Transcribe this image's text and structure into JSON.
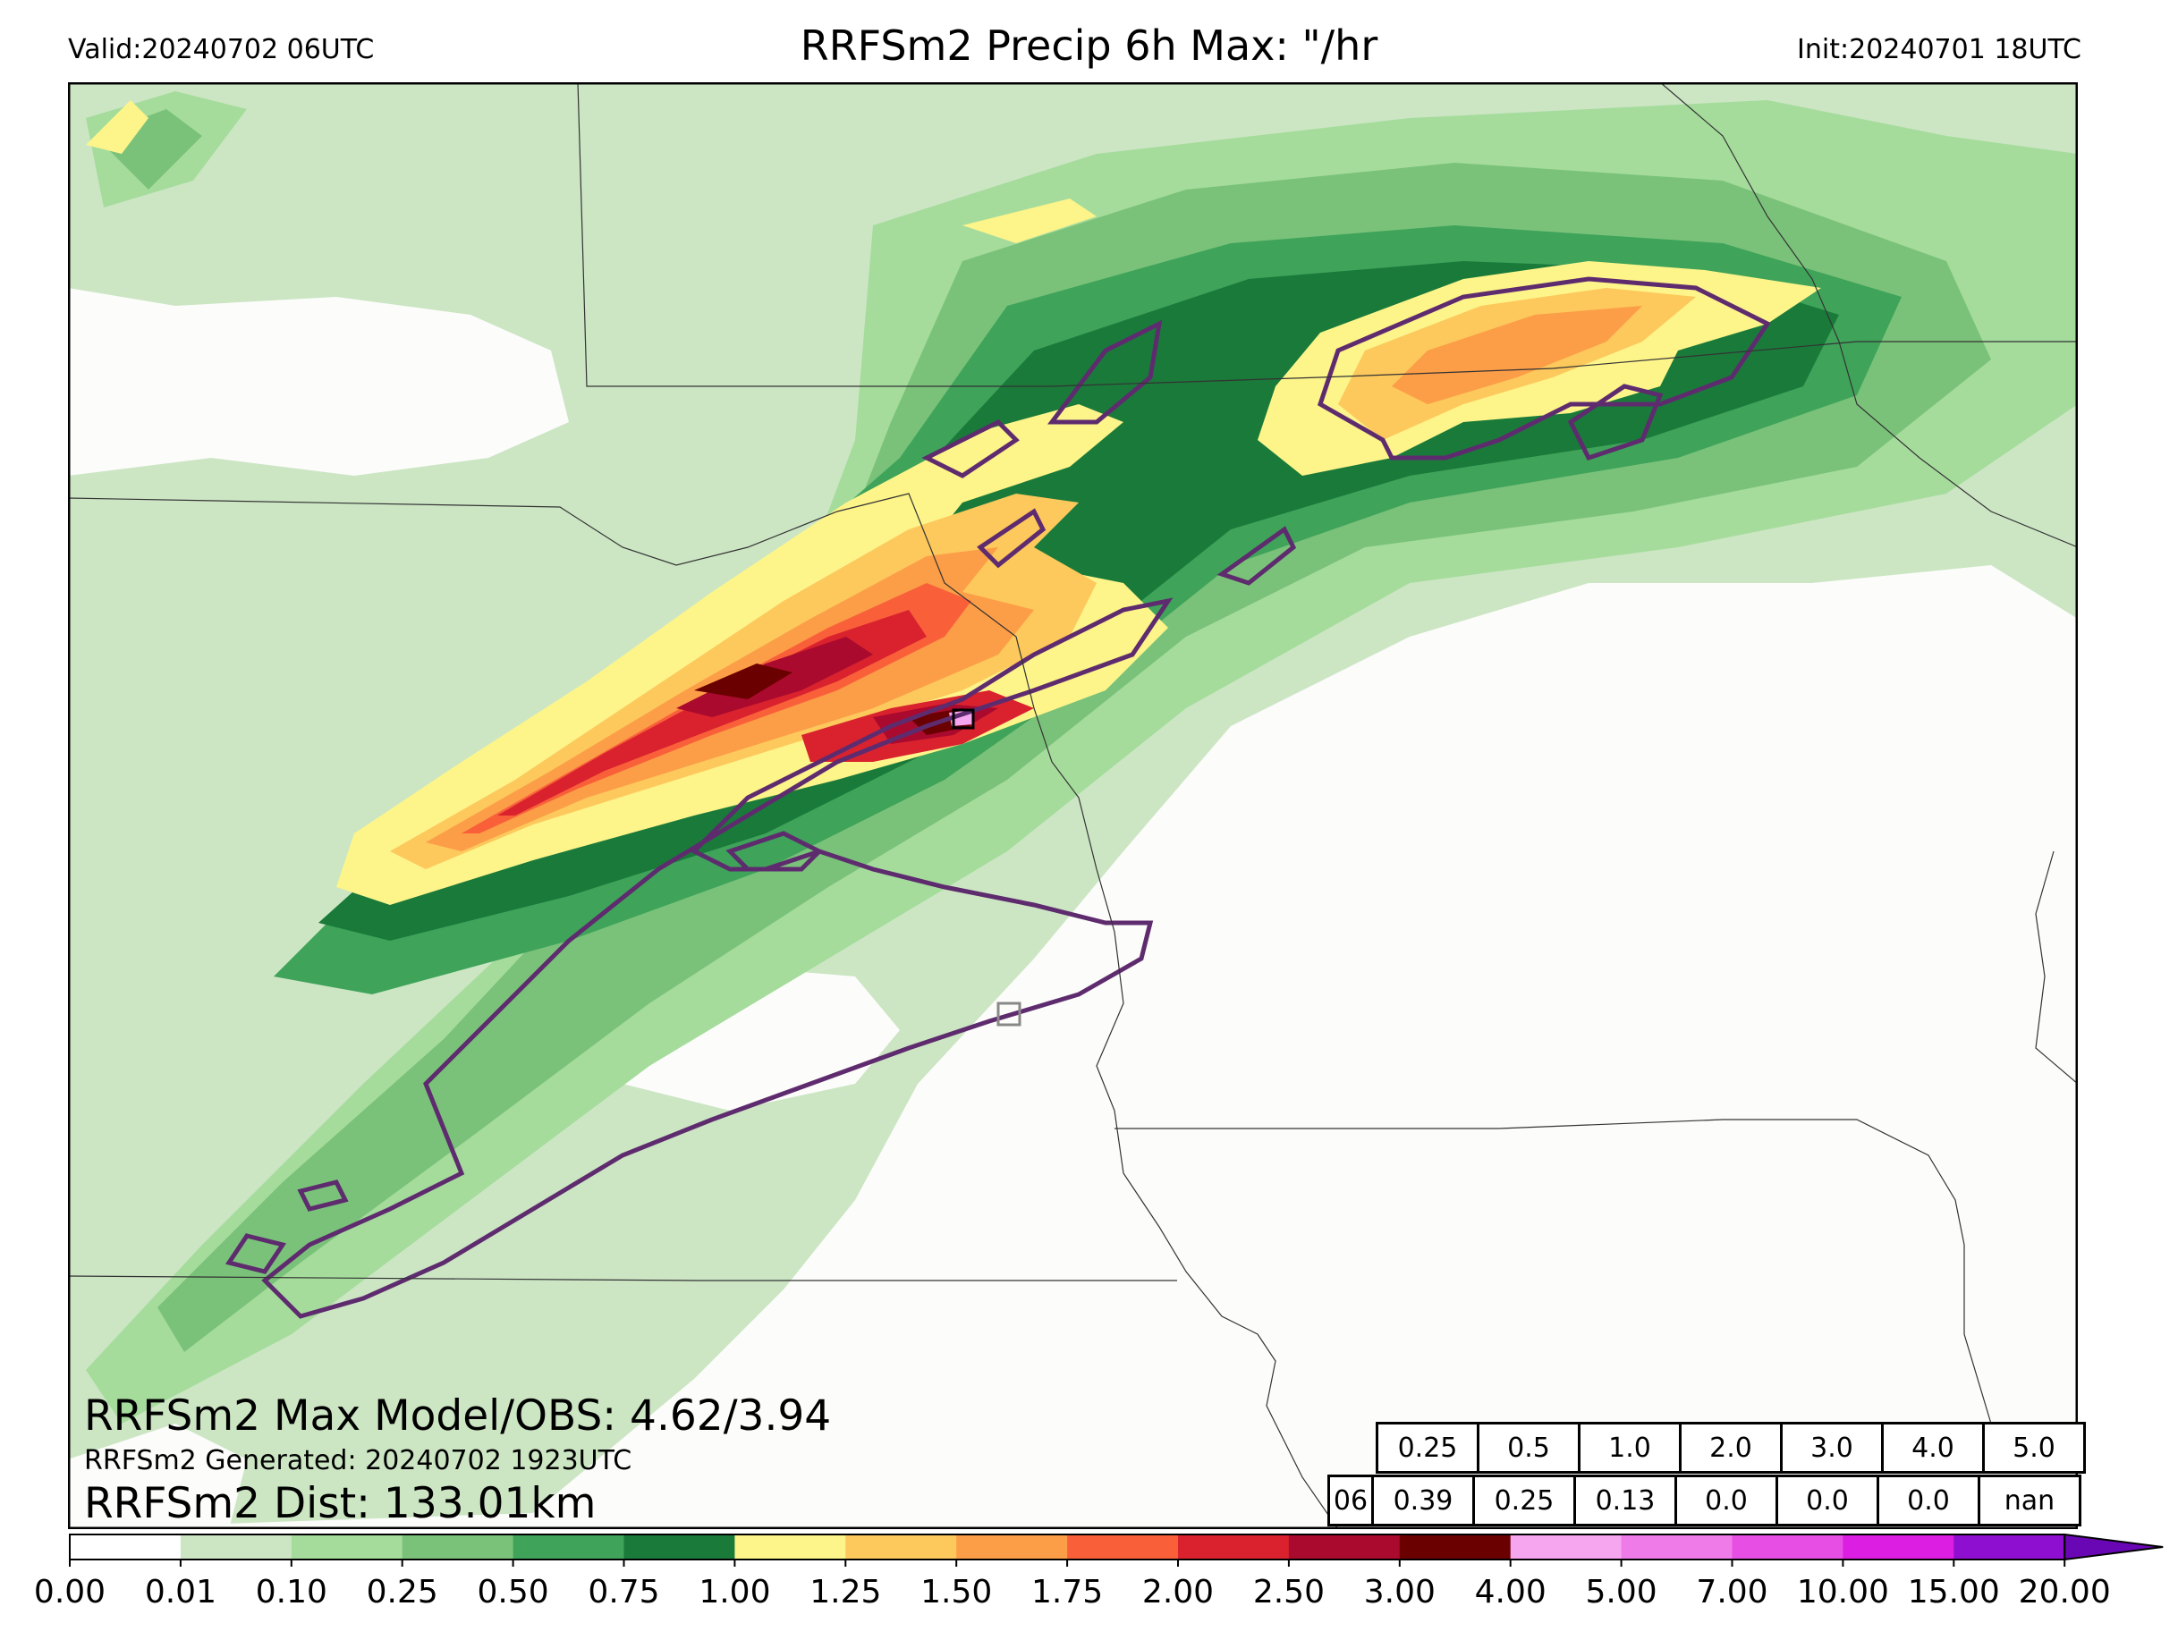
{
  "header": {
    "valid": "Valid:20240702 06UTC",
    "title": "RRFSm2 Precip 6h Max: \"/hr",
    "init": "Init:20240701 18UTC"
  },
  "stats": {
    "max_model_obs": "RRFSm2 Max Model/OBS: 4.62/3.94",
    "generated": "RRFSm2 Generated: 20240702 1923UTC",
    "dist": "RRFSm2 Dist: 133.01km"
  },
  "threshold_table": {
    "row_label": "06",
    "thresholds": [
      "0.25",
      "0.5",
      "1.0",
      "2.0",
      "3.0",
      "4.0",
      "5.0"
    ],
    "values": [
      "0.39",
      "0.25",
      "0.13",
      "0.0",
      "0.0",
      "0.0",
      "nan"
    ]
  },
  "colorbar": {
    "ticks": [
      "0.00",
      "0.01",
      "0.10",
      "0.25",
      "0.50",
      "0.75",
      "1.00",
      "1.25",
      "1.50",
      "1.75",
      "2.00",
      "2.50",
      "3.00",
      "4.00",
      "5.00",
      "7.00",
      "10.00",
      "15.00",
      "20.00"
    ],
    "colors": [
      "#ffffff",
      "#cce6c4",
      "#a5dc9c",
      "#7ac27a",
      "#3fa35a",
      "#1a7a3a",
      "#fdf48a",
      "#fdc85c",
      "#fc9d47",
      "#f9603a",
      "#d9222e",
      "#aa0a2d",
      "#6a0000",
      "#f5a6ee",
      "#ef7be9",
      "#e74ee4",
      "#dc1ee2",
      "#8f0fd0"
    ],
    "extend_color": "#6a07b4"
  },
  "map_colors": {
    "background": "#fcfcfa",
    "obs_contour": "#5e2c6e",
    "borders": "#333333"
  }
}
